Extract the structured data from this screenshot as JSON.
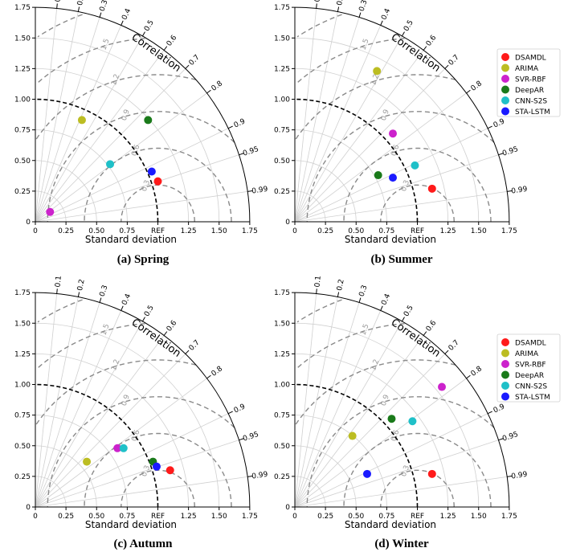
{
  "chart_data": {
    "type": "scatter",
    "subtype": "taylor-diagram",
    "series_names": [
      "DSAMDL",
      "ARIMA",
      "SVR-RBF",
      "DeepAR",
      "CNN-S2S",
      "STA-LSTM"
    ],
    "colors": {
      "DSAMDL": "#ff1a1a",
      "ARIMA": "#bcbd22",
      "SVR-RBF": "#cc22cc",
      "DeepAR": "#1a7a1a",
      "CNN-S2S": "#1fc0c8",
      "STA-LSTM": "#1a1aff"
    },
    "xlabel": "Standard deviation",
    "angle_label": "Correlation",
    "ref_label": "REF",
    "ref_std": 1.0,
    "xlim": [
      0,
      1.75
    ],
    "ylim": [
      0,
      1.75
    ],
    "x_ticks": [
      "0",
      "0.25",
      "0.50",
      "0.75",
      "1.00",
      "1.25",
      "1.50",
      "1.75"
    ],
    "y_ticks": [
      "0",
      "0.25",
      "0.50",
      "0.75",
      "1.00",
      "1.25",
      "1.50",
      "1.75"
    ],
    "correlation_ticks": [
      "0.1",
      "0.2",
      "0.3",
      "0.4",
      "0.5",
      "0.6",
      "0.7",
      "0.8",
      "0.9",
      "0.95",
      "0.99"
    ],
    "rms_contour_labels": [
      "0.3",
      "0.6",
      "0.9",
      "1.2",
      "1.5",
      "1.8"
    ],
    "panels": [
      {
        "caption": "(a) Spring",
        "legend": false,
        "points": [
          {
            "name": "DSAMDL",
            "x": 1.0,
            "y": 0.33
          },
          {
            "name": "ARIMA",
            "x": 0.38,
            "y": 0.83
          },
          {
            "name": "SVR-RBF",
            "x": 0.12,
            "y": 0.08
          },
          {
            "name": "DeepAR",
            "x": 0.92,
            "y": 0.83
          },
          {
            "name": "CNN-S2S",
            "x": 0.61,
            "y": 0.47
          },
          {
            "name": "STA-LSTM",
            "x": 0.95,
            "y": 0.41
          }
        ]
      },
      {
        "caption": "(b) Summer",
        "legend": true,
        "points": [
          {
            "name": "DSAMDL",
            "x": 1.12,
            "y": 0.27
          },
          {
            "name": "ARIMA",
            "x": 0.67,
            "y": 1.23
          },
          {
            "name": "SVR-RBF",
            "x": 0.8,
            "y": 0.72
          },
          {
            "name": "DeepAR",
            "x": 0.68,
            "y": 0.38
          },
          {
            "name": "CNN-S2S",
            "x": 0.98,
            "y": 0.46
          },
          {
            "name": "STA-LSTM",
            "x": 0.8,
            "y": 0.36
          }
        ]
      },
      {
        "caption": "(c) Autumn",
        "legend": false,
        "points": [
          {
            "name": "DSAMDL",
            "x": 1.1,
            "y": 0.3
          },
          {
            "name": "ARIMA",
            "x": 0.42,
            "y": 0.37
          },
          {
            "name": "SVR-RBF",
            "x": 0.67,
            "y": 0.48
          },
          {
            "name": "DeepAR",
            "x": 0.96,
            "y": 0.37
          },
          {
            "name": "CNN-S2S",
            "x": 0.72,
            "y": 0.48
          },
          {
            "name": "STA-LSTM",
            "x": 0.99,
            "y": 0.33
          }
        ]
      },
      {
        "caption": "(d) Winter",
        "legend": true,
        "points": [
          {
            "name": "DSAMDL",
            "x": 1.12,
            "y": 0.27
          },
          {
            "name": "ARIMA",
            "x": 0.47,
            "y": 0.58
          },
          {
            "name": "SVR-RBF",
            "x": 1.2,
            "y": 0.98
          },
          {
            "name": "DeepAR",
            "x": 0.79,
            "y": 0.72
          },
          {
            "name": "CNN-S2S",
            "x": 0.96,
            "y": 0.7
          },
          {
            "name": "STA-LSTM",
            "x": 0.59,
            "y": 0.27
          }
        ]
      }
    ]
  }
}
